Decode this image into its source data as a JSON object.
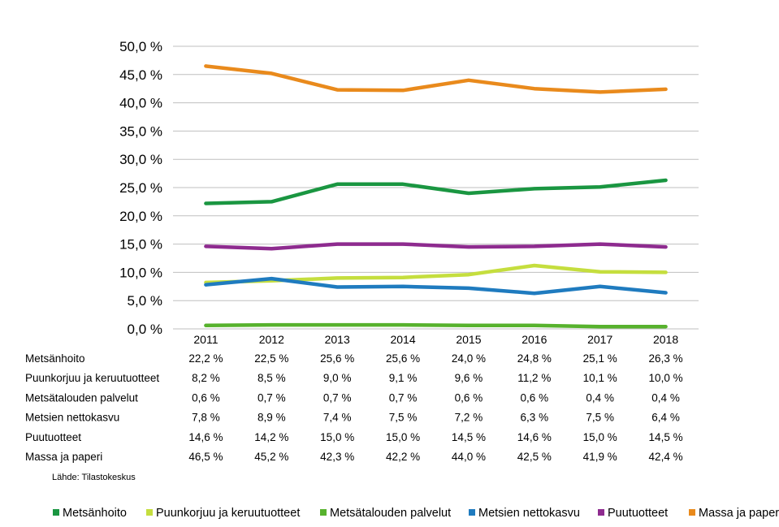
{
  "chart_data": {
    "type": "line",
    "categories": [
      "2011",
      "2012",
      "2013",
      "2014",
      "2015",
      "2016",
      "2017",
      "2018"
    ],
    "ylim": [
      0,
      50
    ],
    "yticks": [
      "0,0 %",
      "5,0 %",
      "10,0 %",
      "15,0 %",
      "20,0 %",
      "25,0 %",
      "30,0 %",
      "35,0 %",
      "40,0 %",
      "45,0 %",
      "50,0 %"
    ],
    "grid": true,
    "legend_position": "bottom",
    "series": [
      {
        "name": "Metsänhoito",
        "color": "#1a9641",
        "values": [
          22.2,
          22.5,
          25.6,
          25.6,
          24.0,
          24.8,
          25.1,
          26.3
        ],
        "labels": [
          "22,2 %",
          "22,5 %",
          "25,6 %",
          "25,6 %",
          "24,0 %",
          "24,8 %",
          "25,1 %",
          "26,3 %"
        ]
      },
      {
        "name": "Puunkorjuu ja keruutuotteet",
        "color": "#c5de3e",
        "values": [
          8.2,
          8.5,
          9.0,
          9.1,
          9.6,
          11.2,
          10.1,
          10.0
        ],
        "labels": [
          "8,2 %",
          "8,5 %",
          "9,0 %",
          "9,1 %",
          "9,6 %",
          "11,2 %",
          "10,1 %",
          "10,0 %"
        ]
      },
      {
        "name": "Metsätalouden palvelut",
        "color": "#57b22d",
        "values": [
          0.6,
          0.7,
          0.7,
          0.7,
          0.6,
          0.6,
          0.4,
          0.4
        ],
        "labels": [
          "0,6 %",
          "0,7 %",
          "0,7 %",
          "0,7 %",
          "0,6 %",
          "0,6 %",
          "0,4 %",
          "0,4 %"
        ]
      },
      {
        "name": "Metsien nettokasvu",
        "color": "#1f7bbf",
        "values": [
          7.8,
          8.9,
          7.4,
          7.5,
          7.2,
          6.3,
          7.5,
          6.4
        ],
        "labels": [
          "7,8 %",
          "8,9 %",
          "7,4 %",
          "7,5 %",
          "7,2 %",
          "6,3 %",
          "7,5 %",
          "6,4 %"
        ]
      },
      {
        "name": "Puutuotteet",
        "color": "#8e2b8f",
        "values": [
          14.6,
          14.2,
          15.0,
          15.0,
          14.5,
          14.6,
          15.0,
          14.5
        ],
        "labels": [
          "14,6 %",
          "14,2 %",
          "15,0 %",
          "15,0 %",
          "14,5 %",
          "14,6 %",
          "15,0 %",
          "14,5 %"
        ]
      },
      {
        "name": "Massa ja paperi",
        "color": "#e98a1c",
        "values": [
          46.5,
          45.2,
          42.3,
          42.2,
          44.0,
          42.5,
          41.9,
          42.4
        ],
        "labels": [
          "46,5 %",
          "45,2 %",
          "42,3 %",
          "42,2 %",
          "44,0 %",
          "42,5 %",
          "41,9 %",
          "42,4 %"
        ]
      }
    ],
    "source": "Lähde: Tilastokeskus"
  }
}
